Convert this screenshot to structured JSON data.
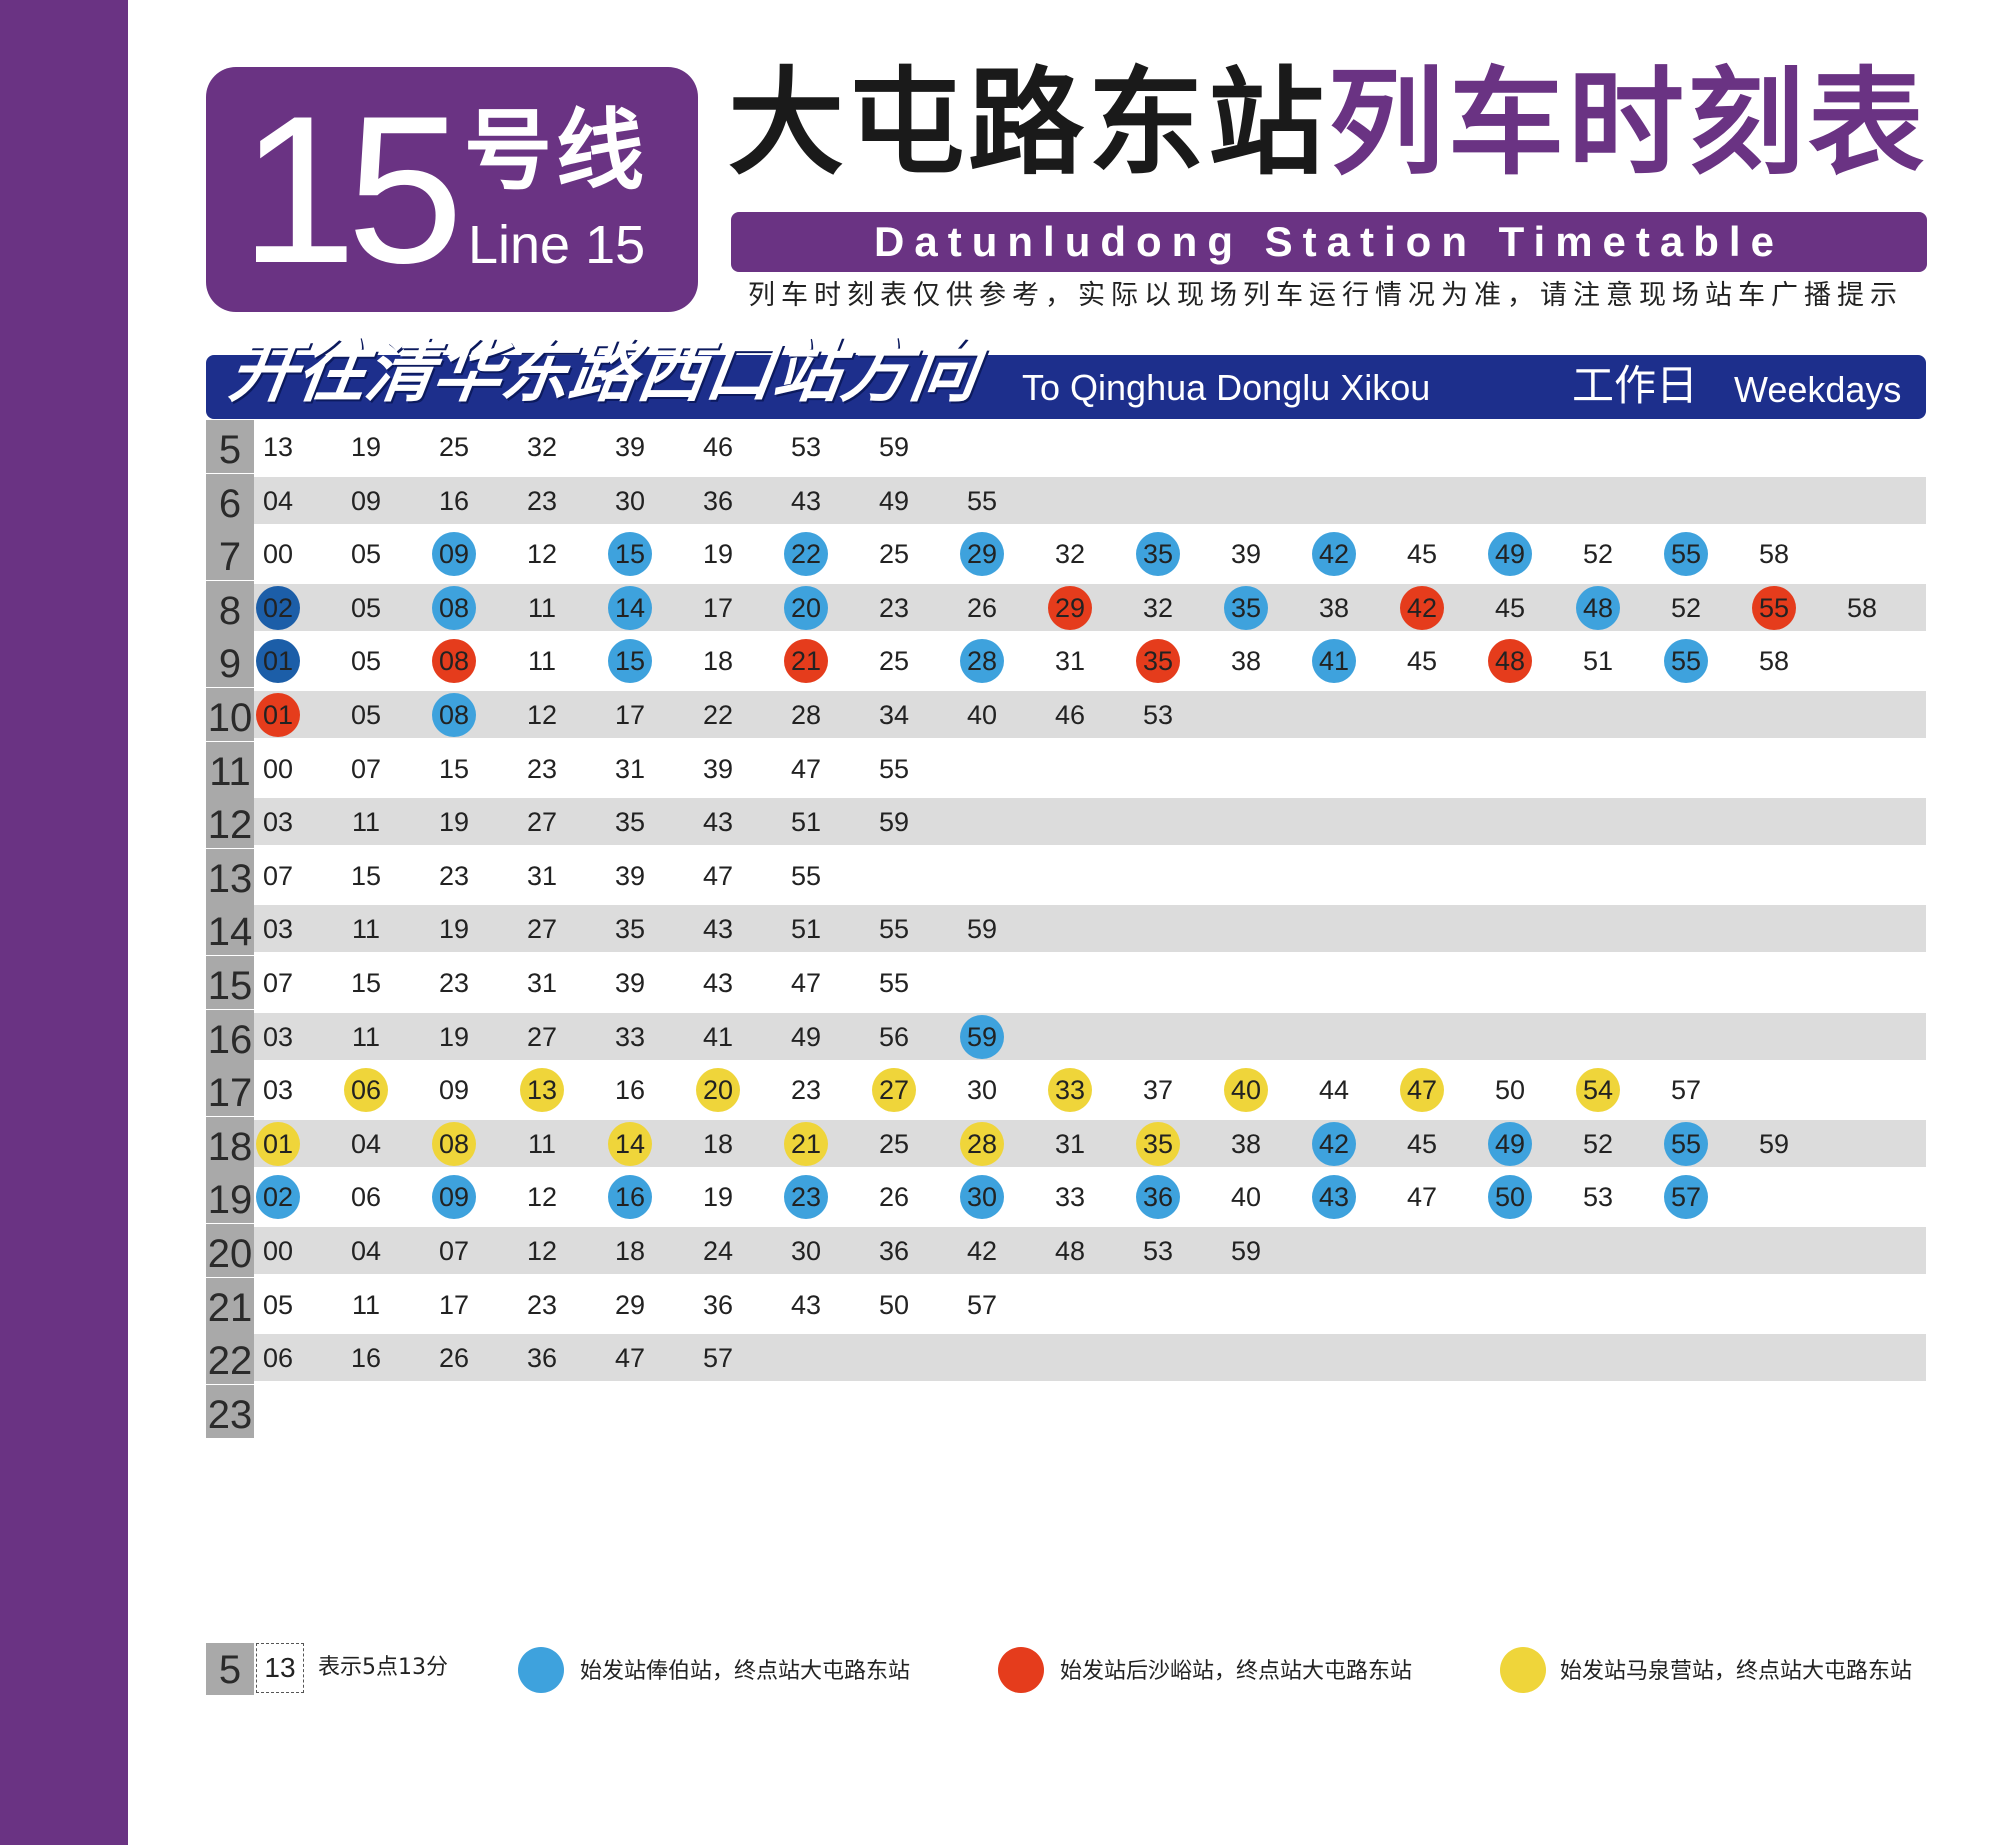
{
  "header": {
    "line_number": "15",
    "line_cn": "号线",
    "line_en": "Line 15",
    "title_station": "大屯路东站",
    "title_suffix": "列车时刻表",
    "title_en": "Datunludong Station Timetable",
    "notice": "列车时刻表仅供参考，实际以现场列车运行情况为准，请注意现场站车广播提示"
  },
  "direction": {
    "cn": "开往清华东路西口站方向",
    "en": "To Qinghua Donglu Xikou",
    "day_cn": "工作日",
    "day_en": "Weekdays"
  },
  "colors": {
    "purple": "#6a3383",
    "navy": "#1d2f8c",
    "blue": "#3ea2dd",
    "dark_blue": "#1c5ea8",
    "red": "#e53c1c",
    "yellow": "#efd53a"
  },
  "timetable": [
    {
      "hour": "5",
      "minutes": [
        [
          "13",
          ""
        ],
        [
          "19",
          ""
        ],
        [
          "25",
          ""
        ],
        [
          "32",
          ""
        ],
        [
          "39",
          ""
        ],
        [
          "46",
          ""
        ],
        [
          "53",
          ""
        ],
        [
          "59",
          ""
        ]
      ]
    },
    {
      "hour": "6",
      "minutes": [
        [
          "04",
          ""
        ],
        [
          "09",
          ""
        ],
        [
          "16",
          ""
        ],
        [
          "23",
          ""
        ],
        [
          "30",
          ""
        ],
        [
          "36",
          ""
        ],
        [
          "43",
          ""
        ],
        [
          "49",
          ""
        ],
        [
          "55",
          ""
        ]
      ]
    },
    {
      "hour": "7",
      "minutes": [
        [
          "00",
          ""
        ],
        [
          "05",
          ""
        ],
        [
          "09",
          "b"
        ],
        [
          "12",
          ""
        ],
        [
          "15",
          "b"
        ],
        [
          "19",
          ""
        ],
        [
          "22",
          "b"
        ],
        [
          "25",
          ""
        ],
        [
          "29",
          "b"
        ],
        [
          "32",
          ""
        ],
        [
          "35",
          "b"
        ],
        [
          "39",
          ""
        ],
        [
          "42",
          "b"
        ],
        [
          "45",
          ""
        ],
        [
          "49",
          "b"
        ],
        [
          "52",
          ""
        ],
        [
          "55",
          "b"
        ],
        [
          "58",
          ""
        ]
      ]
    },
    {
      "hour": "8",
      "minutes": [
        [
          "02",
          "d"
        ],
        [
          "05",
          ""
        ],
        [
          "08",
          "b"
        ],
        [
          "11",
          ""
        ],
        [
          "14",
          "b"
        ],
        [
          "17",
          ""
        ],
        [
          "20",
          "b"
        ],
        [
          "23",
          ""
        ],
        [
          "26",
          ""
        ],
        [
          "29",
          "r"
        ],
        [
          "32",
          ""
        ],
        [
          "35",
          "b"
        ],
        [
          "38",
          ""
        ],
        [
          "42",
          "r"
        ],
        [
          "45",
          ""
        ],
        [
          "48",
          "b"
        ],
        [
          "52",
          ""
        ],
        [
          "55",
          "r"
        ],
        [
          "58",
          ""
        ]
      ]
    },
    {
      "hour": "9",
      "minutes": [
        [
          "01",
          "d"
        ],
        [
          "05",
          ""
        ],
        [
          "08",
          "r"
        ],
        [
          "11",
          ""
        ],
        [
          "15",
          "b"
        ],
        [
          "18",
          ""
        ],
        [
          "21",
          "r"
        ],
        [
          "25",
          ""
        ],
        [
          "28",
          "b"
        ],
        [
          "31",
          ""
        ],
        [
          "35",
          "r"
        ],
        [
          "38",
          ""
        ],
        [
          "41",
          "b"
        ],
        [
          "45",
          ""
        ],
        [
          "48",
          "r"
        ],
        [
          "51",
          ""
        ],
        [
          "55",
          "b"
        ],
        [
          "58",
          ""
        ]
      ]
    },
    {
      "hour": "10",
      "minutes": [
        [
          "01",
          "r"
        ],
        [
          "05",
          ""
        ],
        [
          "08",
          "b"
        ],
        [
          "12",
          ""
        ],
        [
          "17",
          ""
        ],
        [
          "22",
          ""
        ],
        [
          "28",
          ""
        ],
        [
          "34",
          ""
        ],
        [
          "40",
          ""
        ],
        [
          "46",
          ""
        ],
        [
          "53",
          ""
        ]
      ]
    },
    {
      "hour": "11",
      "minutes": [
        [
          "00",
          ""
        ],
        [
          "07",
          ""
        ],
        [
          "15",
          ""
        ],
        [
          "23",
          ""
        ],
        [
          "31",
          ""
        ],
        [
          "39",
          ""
        ],
        [
          "47",
          ""
        ],
        [
          "55",
          ""
        ]
      ]
    },
    {
      "hour": "12",
      "minutes": [
        [
          "03",
          ""
        ],
        [
          "11",
          ""
        ],
        [
          "19",
          ""
        ],
        [
          "27",
          ""
        ],
        [
          "35",
          ""
        ],
        [
          "43",
          ""
        ],
        [
          "51",
          ""
        ],
        [
          "59",
          ""
        ]
      ]
    },
    {
      "hour": "13",
      "minutes": [
        [
          "07",
          ""
        ],
        [
          "15",
          ""
        ],
        [
          "23",
          ""
        ],
        [
          "31",
          ""
        ],
        [
          "39",
          ""
        ],
        [
          "47",
          ""
        ],
        [
          "55",
          ""
        ]
      ]
    },
    {
      "hour": "14",
      "minutes": [
        [
          "03",
          ""
        ],
        [
          "11",
          ""
        ],
        [
          "19",
          ""
        ],
        [
          "27",
          ""
        ],
        [
          "35",
          ""
        ],
        [
          "43",
          ""
        ],
        [
          "51",
          ""
        ],
        [
          "55",
          ""
        ],
        [
          "59",
          ""
        ]
      ]
    },
    {
      "hour": "15",
      "minutes": [
        [
          "07",
          ""
        ],
        [
          "15",
          ""
        ],
        [
          "23",
          ""
        ],
        [
          "31",
          ""
        ],
        [
          "39",
          ""
        ],
        [
          "43",
          ""
        ],
        [
          "47",
          ""
        ],
        [
          "55",
          ""
        ]
      ]
    },
    {
      "hour": "16",
      "minutes": [
        [
          "03",
          ""
        ],
        [
          "11",
          ""
        ],
        [
          "19",
          ""
        ],
        [
          "27",
          ""
        ],
        [
          "33",
          ""
        ],
        [
          "41",
          ""
        ],
        [
          "49",
          ""
        ],
        [
          "56",
          ""
        ],
        [
          "59",
          "b"
        ]
      ]
    },
    {
      "hour": "17",
      "minutes": [
        [
          "03",
          ""
        ],
        [
          "06",
          "y"
        ],
        [
          "09",
          ""
        ],
        [
          "13",
          "y"
        ],
        [
          "16",
          ""
        ],
        [
          "20",
          "y"
        ],
        [
          "23",
          ""
        ],
        [
          "27",
          "y"
        ],
        [
          "30",
          ""
        ],
        [
          "33",
          "y"
        ],
        [
          "37",
          ""
        ],
        [
          "40",
          "y"
        ],
        [
          "44",
          ""
        ],
        [
          "47",
          "y"
        ],
        [
          "50",
          ""
        ],
        [
          "54",
          "y"
        ],
        [
          "57",
          ""
        ]
      ]
    },
    {
      "hour": "18",
      "minutes": [
        [
          "01",
          "y"
        ],
        [
          "04",
          ""
        ],
        [
          "08",
          "y"
        ],
        [
          "11",
          ""
        ],
        [
          "14",
          "y"
        ],
        [
          "18",
          ""
        ],
        [
          "21",
          "y"
        ],
        [
          "25",
          ""
        ],
        [
          "28",
          "y"
        ],
        [
          "31",
          ""
        ],
        [
          "35",
          "y"
        ],
        [
          "38",
          ""
        ],
        [
          "42",
          "b"
        ],
        [
          "45",
          ""
        ],
        [
          "49",
          "b"
        ],
        [
          "52",
          ""
        ],
        [
          "55",
          "b"
        ],
        [
          "59",
          ""
        ]
      ]
    },
    {
      "hour": "19",
      "minutes": [
        [
          "02",
          "b"
        ],
        [
          "06",
          ""
        ],
        [
          "09",
          "b"
        ],
        [
          "12",
          ""
        ],
        [
          "16",
          "b"
        ],
        [
          "19",
          ""
        ],
        [
          "23",
          "b"
        ],
        [
          "26",
          ""
        ],
        [
          "30",
          "b"
        ],
        [
          "33",
          ""
        ],
        [
          "36",
          "b"
        ],
        [
          "40",
          ""
        ],
        [
          "43",
          "b"
        ],
        [
          "47",
          ""
        ],
        [
          "50",
          "b"
        ],
        [
          "53",
          ""
        ],
        [
          "57",
          "b"
        ]
      ]
    },
    {
      "hour": "20",
      "minutes": [
        [
          "00",
          ""
        ],
        [
          "04",
          ""
        ],
        [
          "07",
          ""
        ],
        [
          "12",
          ""
        ],
        [
          "18",
          ""
        ],
        [
          "24",
          ""
        ],
        [
          "30",
          ""
        ],
        [
          "36",
          ""
        ],
        [
          "42",
          ""
        ],
        [
          "48",
          ""
        ],
        [
          "53",
          ""
        ],
        [
          "59",
          ""
        ]
      ]
    },
    {
      "hour": "21",
      "minutes": [
        [
          "05",
          ""
        ],
        [
          "11",
          ""
        ],
        [
          "17",
          ""
        ],
        [
          "23",
          ""
        ],
        [
          "29",
          ""
        ],
        [
          "36",
          ""
        ],
        [
          "43",
          ""
        ],
        [
          "50",
          ""
        ],
        [
          "57",
          ""
        ]
      ]
    },
    {
      "hour": "22",
      "minutes": [
        [
          "06",
          ""
        ],
        [
          "16",
          ""
        ],
        [
          "26",
          ""
        ],
        [
          "36",
          ""
        ],
        [
          "47",
          ""
        ],
        [
          "57",
          ""
        ]
      ]
    },
    {
      "hour": "23",
      "minutes": []
    }
  ],
  "legend": {
    "example_hour": "5",
    "example_minute": "13",
    "example_text": "表示5点13分",
    "blue_text": "始发站俸伯站，终点站大屯路东站",
    "red_text": "始发站后沙峪站，终点站大屯路东站",
    "yellow_text": "始发站马泉营站，终点站大屯路东站"
  }
}
